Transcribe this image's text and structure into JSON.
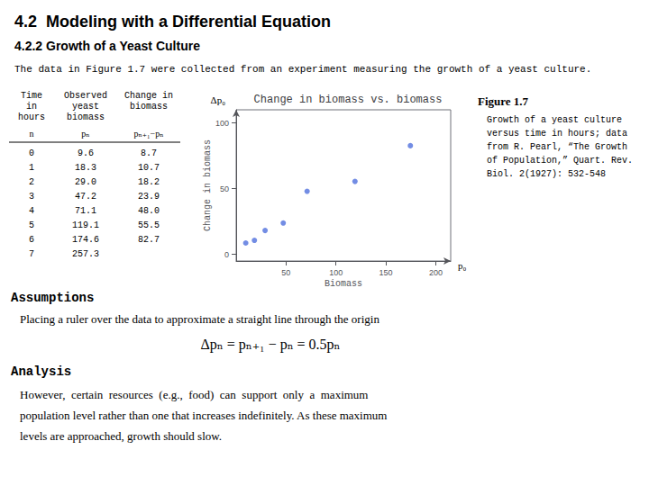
{
  "chart_data": {
    "type": "scatter",
    "title": "Change in biomass vs. biomass",
    "x": [
      9.6,
      18.3,
      29.0,
      47.2,
      71.1,
      119.1,
      174.6
    ],
    "values": [
      8.7,
      10.7,
      18.2,
      23.9,
      48.0,
      55.5,
      82.7
    ],
    "xlabel": "Biomass",
    "ylabel": "Change in biomass",
    "xlim": [
      0,
      215
    ],
    "ylim": [
      -5,
      110
    ],
    "xticks": [
      50,
      100,
      150,
      200
    ],
    "yticks": [
      0,
      50,
      100
    ],
    "grid": false,
    "annotations": [
      "p₀",
      "Δp₀"
    ]
  },
  "page": {
    "title": "4.2  Modeling with a Differential Equation",
    "subtitle": "4.2.2 Growth of a Yeast Culture",
    "intro_text": "The data in Figure 1.7 were collected from an experiment measuring the growth of a yeast culture.",
    "table": {
      "header": [
        "Time\nin\nhours",
        "Observed\nyeast\nbiomass",
        "Change in\nbiomass"
      ],
      "subheader": [
        "n",
        "pₙ",
        "pₙ₊₁−pₙ"
      ],
      "rows": [
        [
          "0",
          "9.6",
          "8.7"
        ],
        [
          "1",
          "18.3",
          "10.7"
        ],
        [
          "2",
          "29.0",
          "18.2"
        ],
        [
          "3",
          "47.2",
          "23.9"
        ],
        [
          "4",
          "71.1",
          "48.0"
        ],
        [
          "5",
          "119.1",
          "55.5"
        ],
        [
          "6",
          "174.6",
          "82.7"
        ],
        [
          "7",
          "257.3",
          null
        ]
      ]
    },
    "figure_title": "Figure 1.7",
    "figure_text": "Growth of a yeast culture\nversus time in hours; data\nfrom R. Pearl, “The Growth\nof Population,” Quart. Rev.\nBiol. 2(1927): 532-548",
    "assumptions_label": "Assumptions",
    "assumptions_text": "Placing a ruler over the data to approximate a straight line through the origin",
    "formula": "Δpₙ = pₙ₊₁ − pₙ = 0.5pₙ",
    "analysis_label": "Analysis",
    "analysis_lines": [
      "However,  certain  resources  (e.g.,  food)  can  support  only  a  maximum",
      "population level rather than one that increases indefinitely. As these maximum",
      "levels are approached, growth should slow."
    ]
  }
}
